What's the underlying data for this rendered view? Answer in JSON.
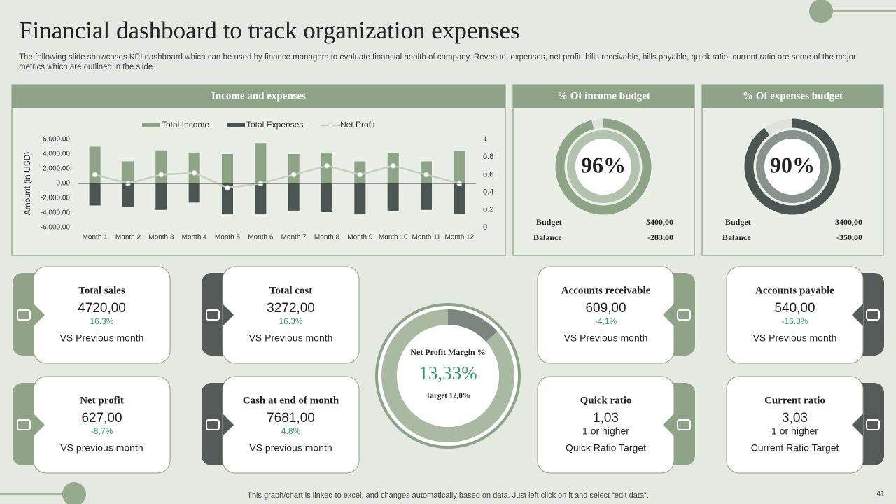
{
  "title": "Financial dashboard to track organization expenses",
  "subtitle": "The following slide showcases KPI dashboard which can be used by finance managers to evaluate financial health of company. Revenue, expenses, net profit, bills receivable, bills payable, quick ratio, current ratio are some of the major metrics which are outlined in the slide.",
  "chart_data": [
    {
      "type": "bar",
      "title": "Income and expenses",
      "y_label": "Amount (in USD)",
      "categories": [
        "Month 1",
        "Month 2",
        "Month 3",
        "Month 4",
        "Month 5",
        "Month 6",
        "Month 7",
        "Month 8",
        "Month 9",
        "Month 10",
        "Month 11",
        "Month 12"
      ],
      "series": [
        {
          "name": "Total Income",
          "color": "#8fa386",
          "values": [
            5000,
            3000,
            4500,
            4200,
            4000,
            5500,
            4000,
            4200,
            3000,
            4100,
            3000,
            4400
          ]
        },
        {
          "name": "Total Expenses",
          "color": "#4d5552",
          "values": [
            -3000,
            -3200,
            -3600,
            -2600,
            -4100,
            -4100,
            -3700,
            -3900,
            -4100,
            -3800,
            -3600,
            -4100
          ]
        },
        {
          "name": "Net Profit",
          "type": "line",
          "axis": "y2",
          "color": "#c5d1bf",
          "values": [
            0.6,
            0.5,
            0.6,
            0.62,
            0.45,
            0.5,
            0.6,
            0.7,
            0.6,
            0.7,
            0.6,
            0.5
          ]
        }
      ],
      "ylim": [
        -6000,
        6000
      ],
      "yticks": [
        {
          "value": -6000,
          "label": "-6,000.00"
        },
        {
          "value": -4000,
          "label": "-4,000.00"
        },
        {
          "value": -2000,
          "label": "-2,000.00"
        },
        {
          "value": 0,
          "label": "0.00"
        },
        {
          "value": 2000,
          "label": "2,000.00"
        },
        {
          "value": 4000,
          "label": "4,000.00"
        },
        {
          "value": 6000,
          "label": "6,000.00"
        }
      ],
      "y2lim": [
        0,
        1
      ],
      "y2ticks": [
        0,
        0.2,
        0.4,
        0.6,
        0.8,
        1
      ]
    },
    {
      "type": "donut",
      "title": "% Of income budget",
      "values": [
        96
      ],
      "value_labels": [
        "96%"
      ],
      "color": "#8fa386",
      "details": [
        {
          "label": "Budget",
          "value": "5400,00"
        },
        {
          "label": "Balance",
          "value": "-283,00"
        }
      ]
    },
    {
      "type": "donut",
      "title": "% Of expenses budget",
      "values": [
        90
      ],
      "value_labels": [
        "90%"
      ],
      "color": "#4d5552",
      "details": [
        {
          "label": "Budget",
          "value": "3400,00"
        },
        {
          "label": "Balance",
          "value": "-350,00"
        }
      ]
    },
    {
      "type": "margin",
      "title": "Net Profit Margin %",
      "values": [
        13.33
      ],
      "value_labels": [
        "13,33%"
      ],
      "color": "#7d8580",
      "note": "Target 12,0%"
    }
  ],
  "kpis": [
    {
      "title": "Total sales",
      "value": "4720,00",
      "change": "16.3%",
      "note": "VS Previous month"
    },
    {
      "title": "Total cost",
      "value": "3272,00",
      "change": "16.3%",
      "note": "VS Previous month"
    },
    {
      "title": "Accounts receivable",
      "value": "609,00",
      "change": "-4,1%",
      "note": "VS Previous month"
    },
    {
      "title": "Accounts payable",
      "value": "540,00",
      "change": "-16.8%",
      "note": "VS Previous month"
    },
    {
      "title": "Net profit",
      "value": "627,00",
      "change": "-8,7%",
      "note": "VS previous month"
    },
    {
      "title": "Cash at end of month",
      "value": "7681,00",
      "change": "4.8%",
      "note": "VS previous month"
    },
    {
      "title": "Quick ratio",
      "value": "1,03",
      "target": "1 or higher",
      "note": "Quick Ratio Target"
    },
    {
      "title": "Current  ratio",
      "value": "3,03",
      "target": "1 or higher",
      "note": "Current Ratio Target"
    }
  ],
  "footer": "This graph/chart is linked to excel,  and changes automatically based on data. Just left click on it and select “edit data”.",
  "page_number": "41"
}
